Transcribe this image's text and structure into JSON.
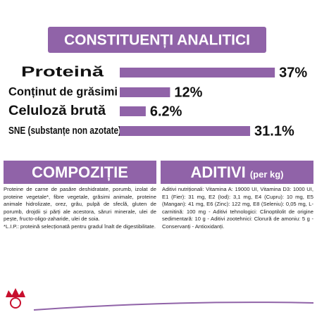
{
  "header": {
    "title": "CONSTITUENȚI ANALITICI"
  },
  "chart_data": {
    "type": "bar",
    "orientation": "horizontal",
    "categories": [
      "Proteină",
      "Conținut de grăsimi",
      "Celuloză brută",
      "SNE (substanțe non azotate)"
    ],
    "values": [
      37,
      12,
      6.2,
      31.1
    ],
    "value_labels": [
      "37%",
      "12%",
      "6.2%",
      "31.1%"
    ],
    "color": "#9063a8"
  },
  "composition": {
    "title": "COMPOZIȚIE",
    "paragraphs": [
      "Proteine de carne de pasăre deshidratate, porumb, izolat de proteine vegetale*, fibre vegetale, grăsimi animale, proteine animale hidrolizate, orez, grâu, pulpă de sfeclă, gluten de porumb, drojdii și părți ale acestora, săruri minerale, ulei de pește, fructo-oligo-zaharide, ulei de soia.",
      "*L.I.P.: proteină selecționată pentru gradul înalt de digestibilitate."
    ]
  },
  "additives": {
    "title": "ADITIVI",
    "subtitle": "(per kg)",
    "text": "Aditivi nutriționali: Vitamina A: 19000 UI, Vitamina D3: 1000 UI, E1 (Fier): 31 mg, E2 (Iod): 3,1 mg, E4 (Cupru): 10 mg, E5 (Mangan): 41 mg, E6 (Zinc): 122 mg, E8 (Seleniu): 0,05 mg, L-carnitină: 100 mg - Aditivi tehnologici: Clinoptilolit de origine sedimentară: 10 g - Aditivi zootehnici: Clorură de amoniu: 5 g - Conservanți - Antioxidanți."
  }
}
